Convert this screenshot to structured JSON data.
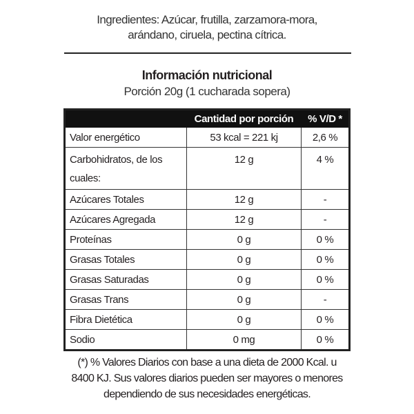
{
  "ingredients": {
    "line1": "Ingredientes: Azúcar, frutilla, zarzamora-mora,",
    "line2": "arándano, ciruela, pectina cítrica."
  },
  "title": "Información nutricional",
  "portion": "Porción 20g (1 cucharada sopera)",
  "table": {
    "headers": [
      "",
      "Cantidad por porción",
      "% V/D *"
    ],
    "rows": [
      {
        "name": "Valor energético",
        "amount": "53 kcal = 221 kj",
        "dv": "2,6 %"
      },
      {
        "name": "Carbohidratos, de los cuales:",
        "amount": "12 g",
        "dv": "4 %"
      },
      {
        "name": "Azúcares Totales",
        "amount": "12 g",
        "dv": "-"
      },
      {
        "name": "Azúcares Agregada",
        "amount": "12 g",
        "dv": "-"
      },
      {
        "name": "Proteínas",
        "amount": "0 g",
        "dv": "0 %"
      },
      {
        "name": "Grasas Totales",
        "amount": "0 g",
        "dv": "0 %"
      },
      {
        "name": "Grasas Saturadas",
        "amount": "0 g",
        "dv": "0 %"
      },
      {
        "name": "Grasas Trans",
        "amount": "0 g",
        "dv": "-"
      },
      {
        "name": "Fibra Dietética",
        "amount": "0 g",
        "dv": "0 %"
      },
      {
        "name": "Sodio",
        "amount": "0 mg",
        "dv": "0 %"
      }
    ]
  },
  "footnote": {
    "line1": "(*) % Valores Diarios con base a una dieta de 2000 Kcal. u",
    "line2": "8400 KJ. Sus valores diarios pueden ser mayores o menores",
    "line3": "dependiendo de sus necesidades energéticas."
  }
}
